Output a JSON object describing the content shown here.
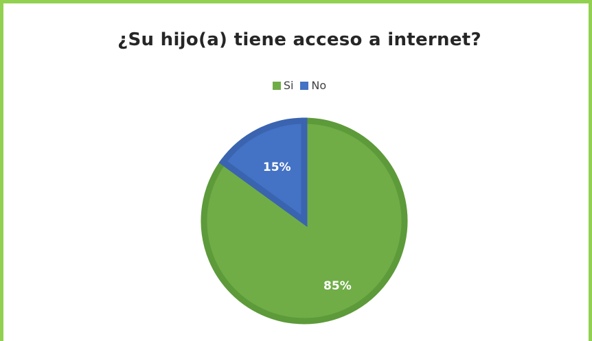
{
  "chart_data": {
    "type": "pie",
    "title": "¿Su hijo(a) tiene acceso a internet?",
    "categories": [
      "Si",
      "No"
    ],
    "values": [
      85,
      15
    ],
    "labels": [
      "85%",
      "15%"
    ],
    "colors": [
      "#70ad47",
      "#4472c4"
    ],
    "border_colors": [
      "#5d9a3a",
      "#3a64b0"
    ],
    "legend_position": "top"
  },
  "frame": {
    "border_color": "#92d050"
  }
}
